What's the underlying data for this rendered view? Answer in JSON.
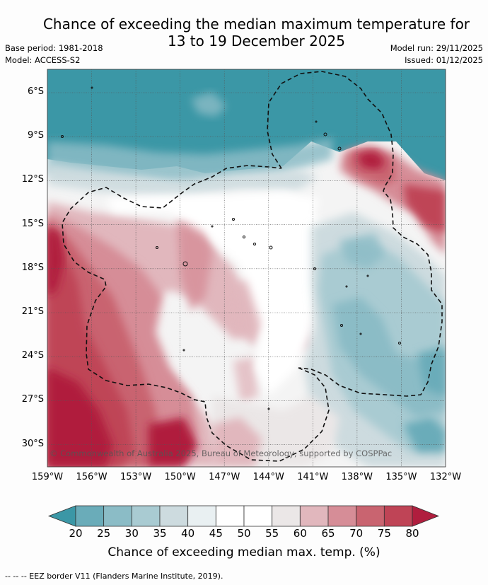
{
  "title_line1": "Chance of exceeding the median maximum temperature for",
  "title_line2": "13 to 19 December 2025",
  "base_period": "Base period: 1981-2018",
  "model": "Model: ACCESS-S2",
  "model_run": "Model run: 29/11/2025",
  "issued": "Issued: 01/12/2025",
  "lat_labels": [
    "6°S",
    "9°S",
    "12°S",
    "15°S",
    "18°S",
    "21°S",
    "24°S",
    "27°S",
    "30°S"
  ],
  "lon_labels": [
    "159°W",
    "156°W",
    "153°W",
    "150°W",
    "147°W",
    "144°W",
    "141°W",
    "138°W",
    "135°W",
    "132°W"
  ],
  "copyright": "© Commonwealth of Australia 2025, Bureau of Meteorology, supported by COSPPac",
  "colorbar": {
    "ticks": [
      "20",
      "25",
      "30",
      "35",
      "40",
      "45",
      "50",
      "55",
      "60",
      "65",
      "70",
      "75",
      "80"
    ],
    "colors": [
      "#3b97a6",
      "#6aacb9",
      "#8bbcc6",
      "#a9cbd2",
      "#cddbdf",
      "#e9f0f2",
      "#ffffff",
      "#ffffff",
      "#ebe7e7",
      "#e1b7bd",
      "#d68d97",
      "#c96470",
      "#bf4456",
      "#b01e3e"
    ],
    "title": "Chance of exceeding median max. temp. (%)"
  },
  "footnote": "--  --  -- EEZ border V11 (Flanders Marine Institute, 2019)."
}
